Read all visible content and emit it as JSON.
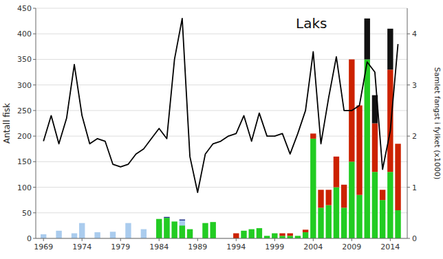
{
  "chart_data": {
    "type": "bar",
    "title": "Laks",
    "ylabel": "Antall fisk",
    "y2label": "Samlet fangst i fylket (x1000)",
    "x": [
      1969,
      1970,
      1971,
      1972,
      1973,
      1974,
      1975,
      1976,
      1977,
      1978,
      1979,
      1980,
      1981,
      1982,
      1983,
      1984,
      1985,
      1986,
      1987,
      1988,
      1989,
      1990,
      1991,
      1992,
      1993,
      1994,
      1995,
      1996,
      1997,
      1998,
      1999,
      2000,
      2001,
      2002,
      2003,
      2004,
      2005,
      2006,
      2007,
      2008,
      2009,
      2010,
      2011,
      2012,
      2013,
      2014,
      2015
    ],
    "series": [
      {
        "type": "bar",
        "color": "#aaccee",
        "values": [
          8,
          0,
          15,
          0,
          10,
          30,
          0,
          12,
          0,
          13,
          0,
          30,
          0,
          18,
          0,
          30,
          40,
          0,
          35,
          0,
          0,
          0,
          0,
          0,
          0,
          0,
          0,
          0,
          0,
          0,
          0,
          0,
          0,
          0,
          0,
          0,
          0,
          0,
          0,
          0,
          0,
          0,
          0,
          0,
          0,
          0,
          0
        ]
      },
      {
        "type": "stacked_bar",
        "color": "#223388",
        "values": [
          0,
          0,
          0,
          0,
          0,
          0,
          0,
          0,
          0,
          0,
          0,
          0,
          0,
          0,
          0,
          0,
          2,
          0,
          2,
          0,
          0,
          0,
          0,
          0,
          0,
          0,
          0,
          0,
          0,
          0,
          0,
          0,
          0,
          0,
          0,
          0,
          0,
          0,
          0,
          0,
          0,
          0,
          0,
          0,
          0,
          0,
          0
        ]
      },
      {
        "type": "bar",
        "color": "#22cc22",
        "values": [
          0,
          0,
          0,
          0,
          0,
          0,
          0,
          0,
          0,
          0,
          0,
          0,
          0,
          0,
          0,
          38,
          40,
          33,
          25,
          18,
          0,
          30,
          32,
          0,
          0,
          0,
          15,
          18,
          20,
          5,
          10,
          5,
          5,
          5,
          12,
          195,
          60,
          65,
          100,
          60,
          150,
          85,
          350,
          130,
          75,
          130,
          55
        ]
      },
      {
        "type": "stacked_bar",
        "color": "#cc2200",
        "values": [
          0,
          0,
          0,
          0,
          0,
          0,
          0,
          0,
          0,
          0,
          0,
          0,
          0,
          0,
          0,
          0,
          0,
          0,
          0,
          0,
          0,
          0,
          0,
          0,
          0,
          10,
          0,
          0,
          0,
          0,
          0,
          5,
          5,
          0,
          5,
          10,
          35,
          30,
          60,
          45,
          200,
          175,
          0,
          95,
          20,
          200,
          130
        ]
      },
      {
        "type": "stacked_bar",
        "color": "#111111",
        "values": [
          0,
          0,
          0,
          0,
          0,
          0,
          0,
          0,
          0,
          0,
          0,
          0,
          0,
          0,
          0,
          0,
          0,
          0,
          0,
          0,
          0,
          0,
          0,
          0,
          0,
          0,
          0,
          0,
          0,
          0,
          0,
          0,
          0,
          0,
          0,
          0,
          0,
          0,
          0,
          0,
          0,
          0,
          80,
          55,
          0,
          80,
          0
        ]
      },
      {
        "type": "line",
        "axis": "y2",
        "color": "#000000",
        "values": [
          1.9,
          2.4,
          1.85,
          2.35,
          3.4,
          2.4,
          1.85,
          1.95,
          1.9,
          1.45,
          1.4,
          1.45,
          1.65,
          1.75,
          1.95,
          2.15,
          1.95,
          3.5,
          4.3,
          1.6,
          0.9,
          1.65,
          1.85,
          1.9,
          2.0,
          2.05,
          2.4,
          1.9,
          2.45,
          2.0,
          2.0,
          2.05,
          1.65,
          2.05,
          2.5,
          3.65,
          1.85,
          2.75,
          3.55,
          2.5,
          2.5,
          2.6,
          3.45,
          3.25,
          1.35,
          2.1,
          3.8
        ]
      }
    ],
    "xlim": [
      1968.0,
      2016.2
    ],
    "xticks": [
      1969,
      1974,
      1979,
      1984,
      1989,
      1994,
      1999,
      2004,
      2009,
      2014
    ],
    "ylim": [
      0,
      450
    ],
    "yticks": [
      0,
      50,
      100,
      150,
      200,
      250,
      300,
      350,
      400,
      450
    ],
    "y2lim": [
      0,
      4.5
    ],
    "y2ticks": [
      0,
      1,
      2,
      3,
      4
    ],
    "grid": true
  }
}
